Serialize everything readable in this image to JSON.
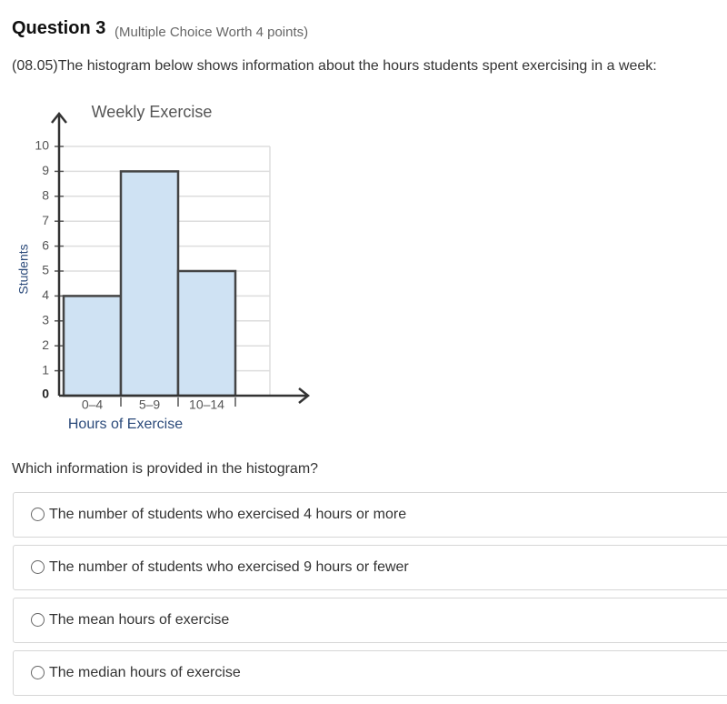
{
  "header": {
    "title": "Question 3",
    "subtitle": "(Multiple Choice Worth 4 points)"
  },
  "prompt": "(08.05)The histogram below shows information about the hours students spent exercising in a week:",
  "chart_data": {
    "type": "histogram",
    "title": "Weekly Exercise",
    "x_label": "Hours of Exercise",
    "y_label": "Students",
    "categories": [
      "0–4",
      "5–9",
      "10–14"
    ],
    "values": [
      4,
      9,
      5
    ],
    "color": "#cfe2f3",
    "ylim": [
      0,
      10
    ],
    "yticks": [
      0,
      1,
      2,
      3,
      4,
      5,
      6,
      7,
      8,
      9,
      10
    ],
    "grid": true
  },
  "question": "Which information is provided in the histogram?",
  "options": [
    "The number of students who exercised 4 hours or more",
    "The number of students who exercised 9 hours or fewer",
    "The mean hours of exercise",
    "The median hours of exercise"
  ]
}
